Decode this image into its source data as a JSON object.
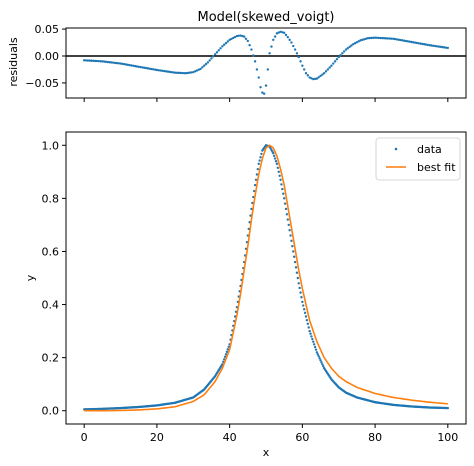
{
  "chart_data": [
    {
      "type": "scatter",
      "panel": "residuals",
      "title": "Model(skewed_voigt)",
      "ylabel": "residuals",
      "xlim": [
        -5,
        105
      ],
      "ylim": [
        -0.078,
        0.052
      ],
      "yticks": [
        0.05,
        0.0,
        -0.05
      ],
      "ytick_labels": [
        "0.05",
        "0.00",
        "−0.05"
      ],
      "xticks": [
        0,
        20,
        40,
        60,
        80,
        100
      ],
      "x_tick_labels_shown": false,
      "zero_line": 0.0,
      "series": [
        {
          "color": "#1f77b4",
          "x": [
            0,
            5,
            10,
            15,
            20,
            25,
            28,
            30,
            32,
            34,
            36,
            38,
            40,
            42,
            43,
            44,
            45,
            46,
            47,
            48,
            48.5,
            49,
            49.5,
            50,
            50.5,
            51,
            52,
            53,
            54,
            55,
            56,
            57,
            58,
            59,
            60,
            61,
            62,
            63,
            64,
            66,
            68,
            70,
            72,
            74,
            76,
            78,
            80,
            85,
            90,
            95,
            100
          ],
          "y": [
            -0.008,
            -0.01,
            -0.014,
            -0.02,
            -0.026,
            -0.031,
            -0.032,
            -0.03,
            -0.024,
            -0.012,
            0.003,
            0.018,
            0.03,
            0.037,
            0.038,
            0.036,
            0.028,
            0.012,
            -0.01,
            -0.04,
            -0.058,
            -0.068,
            -0.07,
            -0.055,
            -0.025,
            0.005,
            0.03,
            0.042,
            0.045,
            0.043,
            0.035,
            0.025,
            0.012,
            -0.002,
            -0.018,
            -0.032,
            -0.04,
            -0.043,
            -0.042,
            -0.032,
            -0.018,
            -0.002,
            0.012,
            0.022,
            0.029,
            0.033,
            0.034,
            0.032,
            0.026,
            0.02,
            0.015
          ]
        }
      ]
    },
    {
      "type": "line",
      "panel": "fit",
      "xlabel": "x",
      "ylabel": "y",
      "xlim": [
        -5,
        105
      ],
      "ylim": [
        -0.05,
        1.05
      ],
      "xticks": [
        0,
        20,
        40,
        60,
        80,
        100
      ],
      "xtick_labels": [
        "0",
        "20",
        "40",
        "60",
        "80",
        "100"
      ],
      "yticks": [
        0.0,
        0.2,
        0.4,
        0.6,
        0.8,
        1.0
      ],
      "ytick_labels": [
        "0.0",
        "0.2",
        "0.4",
        "0.6",
        "0.8",
        "1.0"
      ],
      "legend": "top-right",
      "series": [
        {
          "name": "data",
          "style": "points",
          "color": "#1f77b4",
          "x": [
            0,
            5,
            10,
            15,
            20,
            25,
            30,
            33,
            36,
            38,
            40,
            42,
            43,
            44,
            45,
            46,
            47,
            48,
            49,
            50,
            51,
            52,
            53,
            54,
            55,
            56,
            57,
            58,
            59,
            60,
            62,
            64,
            66,
            68,
            70,
            72,
            75,
            80,
            85,
            90,
            95,
            100
          ],
          "y": [
            0.005,
            0.007,
            0.01,
            0.014,
            0.02,
            0.03,
            0.05,
            0.08,
            0.13,
            0.175,
            0.25,
            0.39,
            0.47,
            0.56,
            0.66,
            0.76,
            0.85,
            0.93,
            0.98,
            1.0,
            0.995,
            0.97,
            0.93,
            0.87,
            0.8,
            0.72,
            0.64,
            0.56,
            0.48,
            0.41,
            0.3,
            0.22,
            0.16,
            0.118,
            0.088,
            0.068,
            0.05,
            0.032,
            0.022,
            0.016,
            0.012,
            0.01
          ]
        },
        {
          "name": "best fit",
          "style": "line",
          "color": "#ff7f0e",
          "x": [
            0,
            5,
            10,
            15,
            20,
            25,
            30,
            33,
            36,
            38,
            40,
            42,
            43,
            44,
            45,
            46,
            47,
            48,
            49,
            50,
            51,
            52,
            53,
            54,
            55,
            56,
            57,
            58,
            59,
            60,
            62,
            64,
            66,
            68,
            70,
            72,
            75,
            80,
            85,
            90,
            95,
            100
          ],
          "y": [
            0.0,
            0.0,
            0.001,
            0.003,
            0.007,
            0.015,
            0.035,
            0.06,
            0.11,
            0.16,
            0.23,
            0.36,
            0.44,
            0.53,
            0.62,
            0.72,
            0.81,
            0.89,
            0.95,
            0.99,
            1.0,
            0.99,
            0.96,
            0.91,
            0.85,
            0.77,
            0.69,
            0.61,
            0.53,
            0.46,
            0.34,
            0.26,
            0.2,
            0.16,
            0.13,
            0.11,
            0.088,
            0.065,
            0.05,
            0.04,
            0.032,
            0.026
          ]
        }
      ]
    }
  ]
}
